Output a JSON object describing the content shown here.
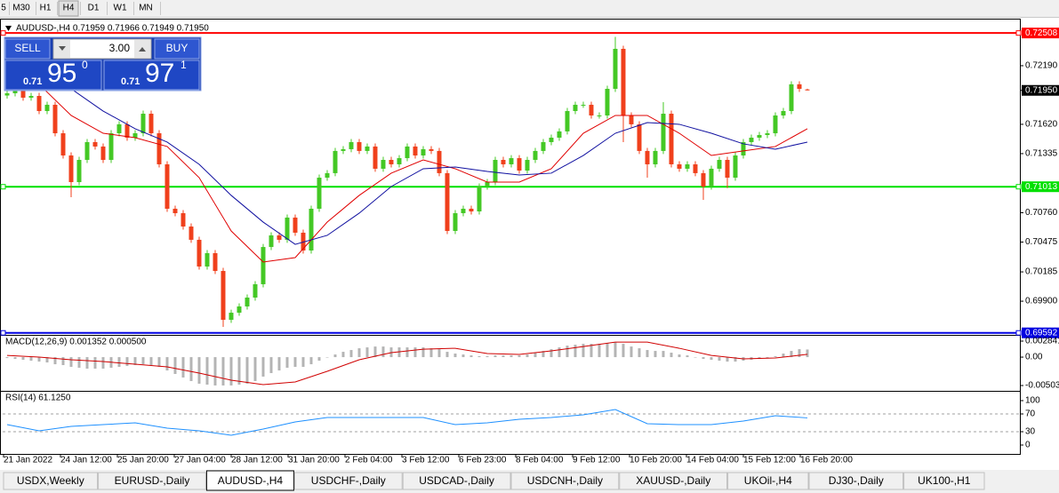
{
  "toolbar": [
    "5",
    "M30",
    "H1",
    "H4",
    "D1",
    "W1",
    "MN"
  ],
  "active_period": 3,
  "trade_panel": {
    "sell": "SELL",
    "lot": "3.00",
    "buy": "BUY",
    "bid": {
      "prefix": "0.71",
      "main": "95",
      "sup": "0"
    },
    "ask": {
      "prefix": "0.71",
      "main": "97",
      "sup": "1"
    }
  },
  "tabs": [
    "USDX,Weekly",
    "EURUSD-,Daily",
    "AUDUSD-,H4",
    "USDCHF-,Daily",
    "USDCAD-,Daily",
    "USDCNH-,Daily",
    "XAUUSD-,Daily",
    "UKOil-,H4",
    "DJ30-,Daily",
    "UK100-,H1"
  ],
  "active_tab": 2,
  "chart_data": [
    {
      "type": "candlestick",
      "title": "AUDUSD-,H4  0.71959 0.71966 0.71949 0.71950",
      "bull_color": "#44c825",
      "bear_color": "#f0401c",
      "candles": [
        [
          0.719,
          0.71952,
          0.7187,
          0.71922
        ],
        [
          0.71922,
          0.71995,
          0.71892,
          0.71965
        ],
        [
          0.71965,
          0.71995,
          0.71849,
          0.71879
        ],
        [
          0.71879,
          0.71926,
          0.71849,
          0.71896
        ],
        [
          0.71896,
          0.71926,
          0.71719,
          0.71749
        ],
        [
          0.71749,
          0.7184,
          0.71719,
          0.7181
        ],
        [
          0.7181,
          0.7184,
          0.71503,
          0.71533
        ],
        [
          0.71533,
          0.71563,
          0.71287,
          0.71317
        ],
        [
          0.71317,
          0.71347,
          0.70911,
          0.71058
        ],
        [
          0.71058,
          0.71304,
          0.71028,
          0.71274
        ],
        [
          0.71274,
          0.71477,
          0.71244,
          0.71447
        ],
        [
          0.71447,
          0.71477,
          0.71374,
          0.71404
        ],
        [
          0.71404,
          0.71434,
          0.71244,
          0.71274
        ],
        [
          0.71274,
          0.71563,
          0.71244,
          0.71533
        ],
        [
          0.71533,
          0.7165,
          0.71503,
          0.7162
        ],
        [
          0.7162,
          0.7165,
          0.7146,
          0.7149
        ],
        [
          0.7149,
          0.71563,
          0.7146,
          0.71533
        ],
        [
          0.71533,
          0.71753,
          0.71503,
          0.71723
        ],
        [
          0.71723,
          0.71753,
          0.71503,
          0.71533
        ],
        [
          0.71533,
          0.71563,
          0.71201,
          0.71231
        ],
        [
          0.71231,
          0.71261,
          0.70769,
          0.70799
        ],
        [
          0.70799,
          0.70829,
          0.70726,
          0.70756
        ],
        [
          0.70756,
          0.70786,
          0.70596,
          0.70626
        ],
        [
          0.70626,
          0.70656,
          0.70467,
          0.70497
        ],
        [
          0.70497,
          0.70527,
          0.70207,
          0.70237
        ],
        [
          0.70237,
          0.70397,
          0.70207,
          0.70367
        ],
        [
          0.70367,
          0.70397,
          0.70164,
          0.70194
        ],
        [
          0.70194,
          0.70224,
          0.6965,
          0.69719
        ],
        [
          0.69719,
          0.69818,
          0.69689,
          0.69788
        ],
        [
          0.69788,
          0.69879,
          0.69758,
          0.69849
        ],
        [
          0.69849,
          0.69965,
          0.69819,
          0.69935
        ],
        [
          0.69935,
          0.70095,
          0.69905,
          0.70065
        ],
        [
          0.70065,
          0.70457,
          0.70035,
          0.70427
        ],
        [
          0.70427,
          0.7057,
          0.70397,
          0.7054
        ],
        [
          0.7054,
          0.7057,
          0.70467,
          0.70497
        ],
        [
          0.70497,
          0.70743,
          0.70467,
          0.70713
        ],
        [
          0.70713,
          0.70743,
          0.70536,
          0.70566
        ],
        [
          0.70566,
          0.70596,
          0.70363,
          0.70393
        ],
        [
          0.70393,
          0.70829,
          0.70363,
          0.70799
        ],
        [
          0.70799,
          0.71131,
          0.70769,
          0.71101
        ],
        [
          0.71101,
          0.71175,
          0.71071,
          0.71145
        ],
        [
          0.71145,
          0.71391,
          0.71115,
          0.71361
        ],
        [
          0.71361,
          0.71408,
          0.71331,
          0.71378
        ],
        [
          0.71378,
          0.71477,
          0.71348,
          0.71447
        ],
        [
          0.71447,
          0.71477,
          0.71331,
          0.71361
        ],
        [
          0.71361,
          0.71434,
          0.71331,
          0.71404
        ],
        [
          0.71404,
          0.71434,
          0.71158,
          0.71188
        ],
        [
          0.71188,
          0.71304,
          0.71158,
          0.71274
        ],
        [
          0.71274,
          0.71304,
          0.71201,
          0.71231
        ],
        [
          0.71231,
          0.71321,
          0.71201,
          0.71291
        ],
        [
          0.71291,
          0.71434,
          0.71261,
          0.71404
        ],
        [
          0.71404,
          0.71434,
          0.71287,
          0.71317
        ],
        [
          0.71317,
          0.71408,
          0.71287,
          0.71378
        ],
        [
          0.71378,
          0.71408,
          0.71331,
          0.71361
        ],
        [
          0.71361,
          0.71391,
          0.71115,
          0.71145
        ],
        [
          0.71145,
          0.71175,
          0.70553,
          0.70583
        ],
        [
          0.70583,
          0.70786,
          0.70553,
          0.70756
        ],
        [
          0.70756,
          0.70829,
          0.70726,
          0.70799
        ],
        [
          0.70799,
          0.70829,
          0.70743,
          0.70773
        ],
        [
          0.70773,
          0.71045,
          0.70743,
          0.71015
        ],
        [
          0.71015,
          0.71088,
          0.70985,
          0.71058
        ],
        [
          0.71058,
          0.71304,
          0.71028,
          0.71274
        ],
        [
          0.71274,
          0.71304,
          0.71201,
          0.71231
        ],
        [
          0.71231,
          0.71321,
          0.71201,
          0.71291
        ],
        [
          0.71291,
          0.71321,
          0.7114,
          0.7117
        ],
        [
          0.7117,
          0.71304,
          0.7114,
          0.71274
        ],
        [
          0.71274,
          0.71391,
          0.71244,
          0.71361
        ],
        [
          0.71361,
          0.71477,
          0.71331,
          0.71447
        ],
        [
          0.71447,
          0.7152,
          0.71417,
          0.7149
        ],
        [
          0.7149,
          0.71581,
          0.7146,
          0.71551
        ],
        [
          0.71551,
          0.71779,
          0.71521,
          0.71749
        ],
        [
          0.71749,
          0.7184,
          0.71719,
          0.7181
        ],
        [
          0.7181,
          0.7184,
          0.7178,
          0.7181
        ],
        [
          0.7181,
          0.7184,
          0.71676,
          0.71706
        ],
        [
          0.71706,
          0.71736,
          0.71676,
          0.71706
        ],
        [
          0.71706,
          0.71995,
          0.71676,
          0.71965
        ],
        [
          0.71965,
          0.7247,
          0.71935,
          0.72354
        ],
        [
          0.72354,
          0.72384,
          0.71447,
          0.71706
        ],
        [
          0.71706,
          0.71736,
          0.7159,
          0.7162
        ],
        [
          0.7162,
          0.7165,
          0.71331,
          0.71361
        ],
        [
          0.71361,
          0.71391,
          0.71101,
          0.71231
        ],
        [
          0.71231,
          0.71391,
          0.71201,
          0.71361
        ],
        [
          0.71361,
          0.71836,
          0.71331,
          0.71723
        ],
        [
          0.71723,
          0.71753,
          0.71201,
          0.71231
        ],
        [
          0.71231,
          0.71261,
          0.71158,
          0.71188
        ],
        [
          0.71188,
          0.71261,
          0.71158,
          0.71231
        ],
        [
          0.71231,
          0.71261,
          0.71115,
          0.71145
        ],
        [
          0.71145,
          0.71175,
          0.70885,
          0.71015
        ],
        [
          0.71015,
          0.71218,
          0.70985,
          0.71188
        ],
        [
          0.71188,
          0.71304,
          0.71158,
          0.71274
        ],
        [
          0.71274,
          0.71304,
          0.71,
          0.71101
        ],
        [
          0.71101,
          0.71347,
          0.71071,
          0.71317
        ],
        [
          0.71317,
          0.71477,
          0.71287,
          0.71447
        ],
        [
          0.71447,
          0.7152,
          0.71417,
          0.7149
        ],
        [
          0.7149,
          0.71546,
          0.7146,
          0.71516
        ],
        [
          0.71516,
          0.71563,
          0.71486,
          0.71533
        ],
        [
          0.71533,
          0.71736,
          0.71503,
          0.71706
        ],
        [
          0.71706,
          0.71779,
          0.71676,
          0.71749
        ],
        [
          0.71749,
          0.72039,
          0.71719,
          0.72009
        ],
        [
          0.72009,
          0.72039,
          0.71935,
          0.71965
        ],
        [
          0.71959,
          0.71966,
          0.71949,
          0.7195
        ]
      ],
      "series": [
        {
          "color": "#e00000",
          "x": [
            0,
            4,
            8,
            12,
            16,
            20,
            24,
            28,
            32,
            36,
            40,
            44,
            48,
            52,
            56,
            60,
            64,
            68,
            72,
            76,
            80,
            84,
            88,
            92,
            96,
            100
          ],
          "values": [
            0.72052,
            0.72009,
            0.71706,
            0.71533,
            0.7149,
            0.71404,
            0.71101,
            0.70583,
            0.70281,
            0.70324,
            0.70669,
            0.70929,
            0.71145,
            0.71274,
            0.71188,
            0.71058,
            0.71058,
            0.71188,
            0.71533,
            0.71706,
            0.71706,
            0.71533,
            0.71317,
            0.71361,
            0.71404,
            0.71577
          ]
        },
        {
          "color": "#1010a0",
          "x": [
            0,
            4,
            8,
            12,
            16,
            20,
            24,
            28,
            32,
            36,
            40,
            44,
            48,
            52,
            56,
            60,
            64,
            68,
            72,
            76,
            80,
            84,
            88,
            92,
            96,
            100
          ],
          "values": [
            0.72138,
            0.72052,
            0.71965,
            0.71749,
            0.71577,
            0.71447,
            0.71231,
            0.70929,
            0.70669,
            0.70453,
            0.7054,
            0.70756,
            0.71015,
            0.71188,
            0.71205,
            0.71162,
            0.71127,
            0.71145,
            0.71317,
            0.71533,
            0.71637,
            0.7162,
            0.71533,
            0.7143,
            0.71378,
            0.71447
          ]
        }
      ],
      "levels": [
        {
          "value": 0.72508,
          "label": "0.72508",
          "color": "#ff0000"
        },
        {
          "value": 0.71013,
          "label": "0.71013",
          "color": "#00e000"
        },
        {
          "value": 0.69592,
          "label": "0.69592",
          "color": "#0000e0"
        }
      ],
      "current": {
        "value": 0.7195,
        "label": "0.71950"
      },
      "ylim": [
        0.69581,
        0.72587
      ],
      "yticks": [
        {
          "value": 0.7219,
          "label": "0.72190"
        },
        {
          "value": 0.7162,
          "label": "0.71620"
        },
        {
          "value": 0.71335,
          "label": "0.71335"
        },
        {
          "value": 0.7076,
          "label": "0.70760"
        },
        {
          "value": 0.70475,
          "label": "0.70475"
        },
        {
          "value": 0.70185,
          "label": "0.70185"
        },
        {
          "value": 0.699,
          "label": "0.69900"
        }
      ],
      "x_labels": [
        "21 Jan 2022",
        "24 Jan 12:00",
        "25 Jan 20:00",
        "27 Jan 04:00",
        "28 Jan 12:00",
        "31 Jan 20:00",
        "2 Feb 04:00",
        "3 Feb 12:00",
        "6 Feb 23:00",
        "8 Feb 04:00",
        "9 Feb 12:00",
        "10 Feb 20:00",
        "14 Feb 04:00",
        "15 Feb 12:00",
        "16 Feb 20:00"
      ]
    },
    {
      "type": "macd",
      "title": "MACD(12,26,9) 0.001352 0.000500",
      "color": "#b4b4b4",
      "values": [
        -0.00016,
        -0.00031,
        -0.00047,
        -0.00063,
        -0.00079,
        -0.00094,
        -0.00126,
        -0.00141,
        -0.00173,
        -0.00188,
        -0.00204,
        -0.00204,
        -0.00204,
        -0.00188,
        -0.00173,
        -0.00157,
        -0.00141,
        -0.00126,
        -0.00141,
        -0.00173,
        -0.00236,
        -0.00298,
        -0.00361,
        -0.00424,
        -0.00471,
        -0.00487,
        -0.00502,
        -0.00502,
        -0.00502,
        -0.00487,
        -0.00471,
        -0.00424,
        -0.00345,
        -0.00283,
        -0.00236,
        -0.00188,
        -0.00173,
        -0.00173,
        -0.00126,
        -0.00063,
        0,
        0.00047,
        0.00094,
        0.00126,
        0.00157,
        0.00173,
        0.00188,
        0.00188,
        0.00173,
        0.00173,
        0.00173,
        0.00173,
        0.00173,
        0.00157,
        0.00141,
        0.00094,
        0.00063,
        0.00047,
        0.00031,
        0.00016,
        0.00016,
        0.00031,
        0.00031,
        0.00031,
        0.00031,
        0.00047,
        0.00079,
        0.0011,
        0.00141,
        0.00173,
        0.00204,
        0.0022,
        0.00236,
        0.00236,
        0.00236,
        0.00251,
        0.00267,
        0.00236,
        0.00188,
        0.00157,
        0.00126,
        0.0011,
        0.0011,
        0.00079,
        0.00047,
        0.00031,
        0,
        -0.00031,
        -0.00047,
        -0.00063,
        -0.00079,
        -0.00079,
        -0.00063,
        -0.00047,
        -0.00031,
        -0.00016,
        0.00016,
        0.00063,
        0.0011,
        0.00141,
        0.001352
      ],
      "series": [
        {
          "color": "#d00000",
          "x": [
            0,
            4,
            8,
            12,
            16,
            20,
            24,
            28,
            32,
            36,
            40,
            44,
            48,
            52,
            56,
            60,
            64,
            68,
            72,
            76,
            80,
            84,
            88,
            92,
            96,
            100
          ],
          "values": [
            0.00031,
            0,
            -0.00047,
            -0.00079,
            -0.00126,
            -0.00173,
            -0.00283,
            -0.00408,
            -0.00487,
            -0.0044,
            -0.00251,
            -0.00047,
            0.00079,
            0.00141,
            0.00157,
            0.00063,
            0.00047,
            0.0011,
            0.00188,
            0.00267,
            0.00267,
            0.00157,
            0.00031,
            -0.00031,
            -0.00016,
            0.0005
          ]
        }
      ],
      "ylim": [
        -0.005032,
        0.002841
      ],
      "yticks": [
        0.002841,
        {
          "value": 0,
          "label": "0.00"
        },
        -0.005032
      ]
    },
    {
      "type": "line",
      "title": "RSI(14) 61.1250",
      "series": [
        {
          "color": "#1e90ff",
          "x": [
            0,
            4,
            8,
            12,
            16,
            20,
            24,
            28,
            32,
            36,
            40,
            44,
            48,
            52,
            56,
            60,
            64,
            68,
            72,
            76,
            80,
            84,
            88,
            92,
            96,
            100
          ],
          "values": [
            46,
            32,
            42,
            46,
            50,
            38,
            32,
            22,
            36,
            52,
            62,
            62,
            62,
            62,
            46,
            50,
            58,
            62,
            68,
            80,
            48,
            46,
            46,
            54,
            66,
            61.125
          ]
        }
      ],
      "levels": [
        70,
        30
      ],
      "ylim": [
        0,
        100
      ],
      "yticks": [
        100,
        70,
        30,
        0
      ]
    }
  ]
}
